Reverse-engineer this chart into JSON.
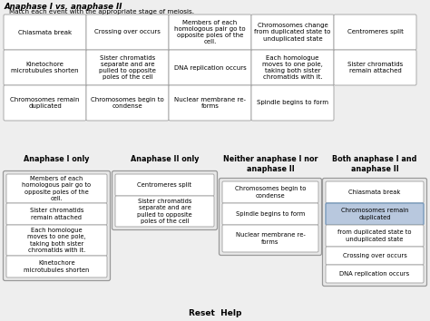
{
  "title": "Anaphase I vs. anaphase II",
  "subtitle": "Match each event with the appropriate stage of meiosis.",
  "top_grid": [
    [
      "Chiasmata break",
      "Crossing over occurs",
      "Members of each\nhomologous pair go to\nopposite poles of the\ncell.",
      "Chromosomes change\nfrom duplicated state to\nunduplicated state",
      "Centromeres split"
    ],
    [
      "Kinetochore\nmicrotubules shorten",
      "Sister chromatids\nseparate and are\npulled to opposite\npoles of the cell",
      "DNA replication occurs",
      "Each homologue\nmoves to one pole,\ntaking both sister\nchromatids with it.",
      "Sister chromatids\nremain attached"
    ],
    [
      "Chromosomes remain\nduplicated",
      "Chromosomes begin to\ncondense",
      "Nuclear membrane re-\nforms",
      "Spindle begins to form",
      ""
    ]
  ],
  "col_headers": [
    "Anaphase I only",
    "Anaphase II only",
    "Neither anaphase I nor\nanaphase II",
    "Both anaphase I and\nanaphase II"
  ],
  "bottom_cols": [
    [
      "Members of each\nhomologous pair go to\nopposite poles of the\ncell.",
      "Sister chromatids\nremain attached",
      "Each homologue\nmoves to one pole,\ntaking both sister\nchromatids with it.",
      "Kinetochore\nmicrotubules shorten"
    ],
    [
      "Centromeres split",
      "Sister chromatids\nseparate and are\npulled to opposite\npoles of the cell"
    ],
    [
      "Chromosomes begin to\ncondense",
      "Spindle begins to form",
      "Nuclear membrane re-\nforms"
    ],
    [
      "Chiasmata break",
      "Chromosomes remain\nduplicated",
      "from duplicated state to\nunduplicated state",
      "Crossing over occurs",
      "DNA replication occurs"
    ]
  ],
  "footer": "Reset  Help",
  "highlight_col3_item1": true
}
